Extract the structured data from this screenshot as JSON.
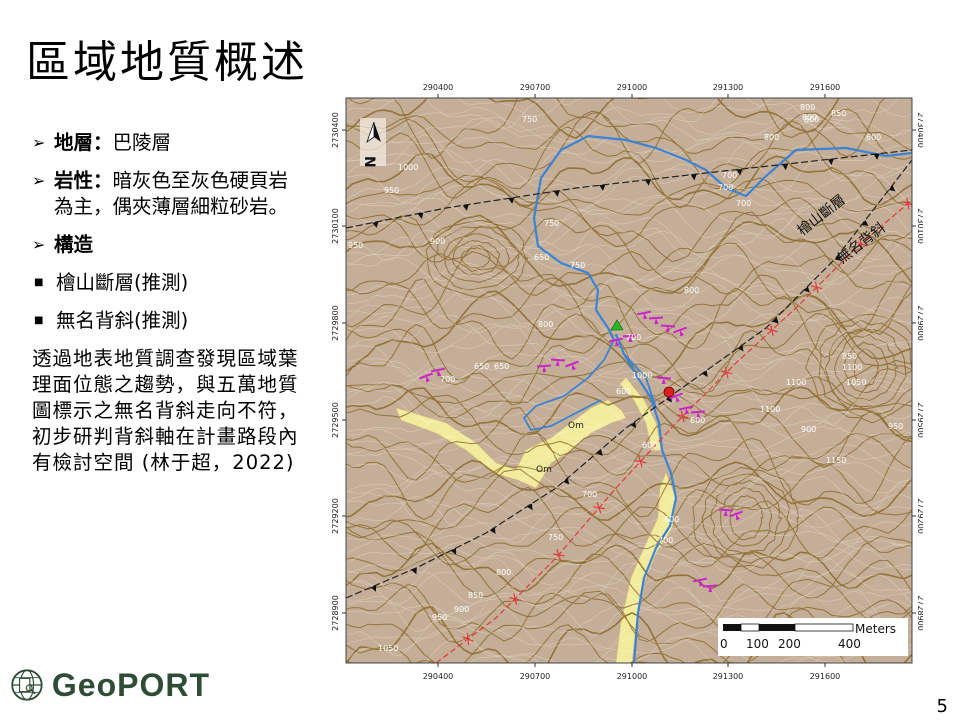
{
  "slide": {
    "title": "區域地質概述",
    "page_number": "5"
  },
  "bullets": [
    {
      "label": "地層：",
      "text": "巴陵層"
    },
    {
      "label": "岩性：",
      "text": "暗灰色至灰色硬頁岩為主，偶夾薄層細粒砂岩。"
    },
    {
      "label": "構造",
      "text": ""
    }
  ],
  "structures": [
    "檜山斷層(推測)",
    "無名背斜(推測)"
  ],
  "paragraph": "透過地表地質調查發現區域葉理面位態之趨勢，與五萬地質圖標示之無名背斜走向不符，初步研判背斜軸在計畫路段內有檢討空間 (林于超，2022)",
  "logo": {
    "text": "GeoPORT"
  },
  "map": {
    "x_ticks": [
      "290400",
      "290700",
      "291000",
      "291300",
      "291600"
    ],
    "y_ticks": [
      "2730400",
      "2730100",
      "2729800",
      "2729500",
      "2729200",
      "2728900"
    ],
    "fault_label": "檜山斷層",
    "anticline_label": "無名背斜",
    "north_label": "N",
    "scale": {
      "unit": "Meters",
      "labels": [
        "0",
        "100",
        "200",
        "400"
      ]
    },
    "formation_labels": [
      "Om",
      "Om"
    ],
    "contour_labels": [
      "750",
      "800",
      "850",
      "800",
      "1000",
      "950",
      "950",
      "900",
      "650",
      "750",
      "750",
      "700",
      "700",
      "800",
      "800",
      "700",
      "850",
      "1100",
      "1100",
      "1050",
      "1100",
      "900",
      "950",
      "1150",
      "1000",
      "600",
      "600",
      "700",
      "650",
      "650",
      "700",
      "600",
      "700",
      "750",
      "600",
      "800",
      "850",
      "900",
      "950",
      "1050",
      "800",
      "600",
      "700",
      "800"
    ],
    "colors": {
      "terrain": "#c4ae97",
      "alluvium": "#f3eb9c",
      "contour": "#8a6a2a",
      "river": "#3a83d6",
      "fault": "#222222",
      "anticline": "#e03a3a",
      "foliation": "#cc22cc",
      "site_marker": "#e02020",
      "station_marker": "#22bb22"
    }
  }
}
